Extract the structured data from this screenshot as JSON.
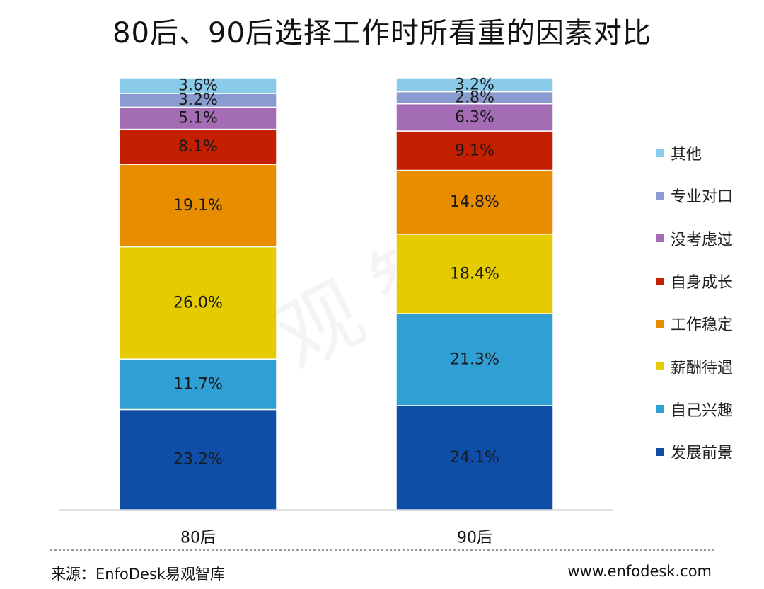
{
  "chart_data": {
    "type": "bar",
    "stacked": true,
    "normalized": true,
    "title": "80后、90后选择工作时所看重的因素对比",
    "categories": [
      "80后",
      "90后"
    ],
    "series": [
      {
        "name": "发展前景",
        "color": "#0f4ea7",
        "values": [
          23.2,
          24.1
        ],
        "labels": [
          "23.2%",
          "24.1%"
        ]
      },
      {
        "name": "自己兴趣",
        "color": "#2f9fd4",
        "values": [
          11.7,
          21.3
        ],
        "labels": [
          "11.7%",
          "21.3%"
        ]
      },
      {
        "name": "薪酬待遇",
        "color": "#e4cc00",
        "values": [
          26.0,
          18.4
        ],
        "labels": [
          "26.0%",
          "18.4%"
        ]
      },
      {
        "name": "工作稳定",
        "color": "#e88c00",
        "values": [
          19.1,
          14.8
        ],
        "labels": [
          "19.1%",
          "14.8%"
        ]
      },
      {
        "name": "自身成长",
        "color": "#c41f00",
        "values": [
          8.1,
          9.1
        ],
        "labels": [
          "8.1%",
          "9.1%"
        ]
      },
      {
        "name": "没考虑过",
        "color": "#a56cb6",
        "values": [
          5.1,
          6.3
        ],
        "labels": [
          "5.1%",
          "6.3%"
        ]
      },
      {
        "name": "专业对口",
        "color": "#8a9bd0",
        "values": [
          3.2,
          2.8
        ],
        "labels": [
          "3.2%",
          "2.8%"
        ]
      },
      {
        "name": "其他",
        "color": "#89cbe9",
        "values": [
          3.6,
          3.2
        ],
        "labels": [
          "3.6%",
          "3.2%"
        ]
      }
    ],
    "legend_position": "right",
    "grid": false
  },
  "footer": {
    "source": "来源：EnfoDesk易观智库",
    "website": "www.enfodesk.com"
  },
  "watermark": "易观智库"
}
